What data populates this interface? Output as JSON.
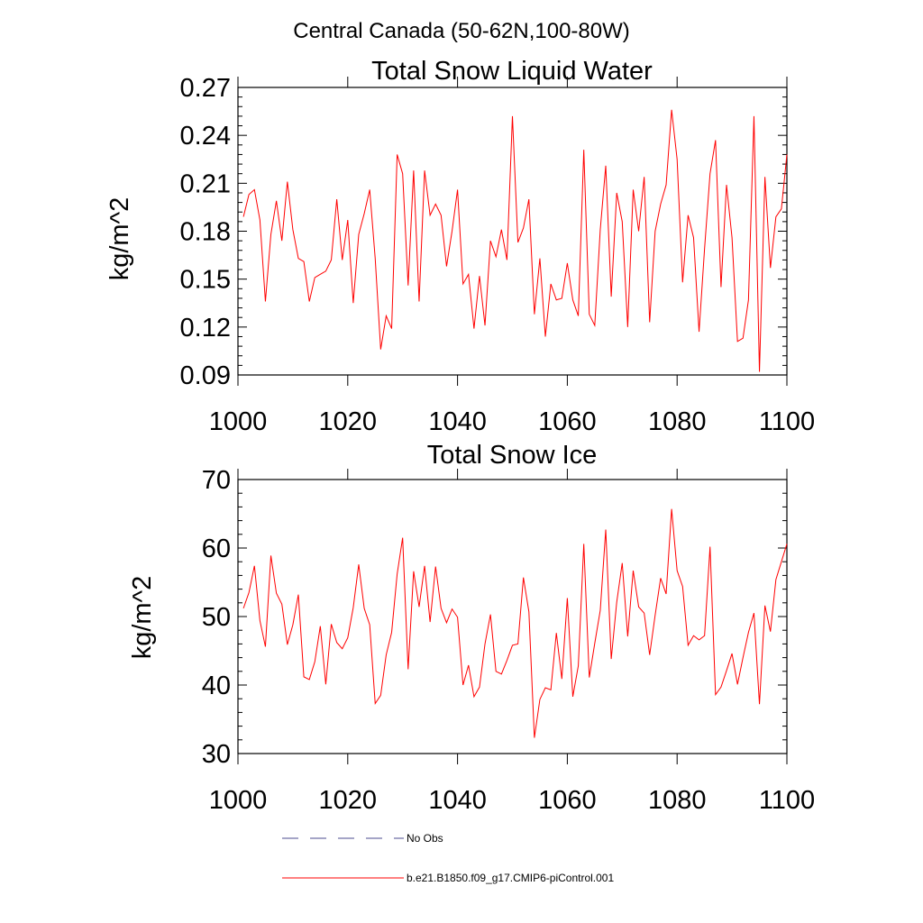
{
  "figure_title": "Central Canada (50-62N,100-80W)",
  "legend": {
    "items": [
      {
        "label": "No Obs",
        "style": "dashed",
        "color": "#4b4b8f"
      },
      {
        "label": "b.e21.B1850.f09_g17.CMIP6-piControl.001",
        "style": "solid",
        "color": "#ff0000"
      }
    ]
  },
  "chart_data": [
    {
      "type": "line",
      "title": "Total Snow Liquid Water",
      "xlabel": "",
      "ylabel": "kg/m^2",
      "xlim": [
        1000,
        1100
      ],
      "ylim": [
        0.09,
        0.27
      ],
      "xticks": [
        1000,
        1020,
        1040,
        1060,
        1080,
        1100
      ],
      "xtick_labels": [
        "1000",
        "1020",
        "1040",
        "1060",
        "1080",
        "1100"
      ],
      "yticks": [
        0.09,
        0.12,
        0.15,
        0.18,
        0.21,
        0.24,
        0.27
      ],
      "ytick_labels": [
        "0.09",
        "0.12",
        "0.15",
        "0.18",
        "0.21",
        "0.24",
        "0.27"
      ],
      "x_start": 1001,
      "x_step": 1,
      "series": [
        {
          "name": "b.e21.B1850.f09_g17.CMIP6-piControl.001",
          "color": "#ff0000",
          "values": [
            0.189,
            0.203,
            0.206,
            0.187,
            0.136,
            0.178,
            0.199,
            0.174,
            0.211,
            0.181,
            0.163,
            0.161,
            0.136,
            0.151,
            0.153,
            0.155,
            0.162,
            0.2,
            0.162,
            0.187,
            0.135,
            0.178,
            0.191,
            0.206,
            0.163,
            0.106,
            0.127,
            0.119,
            0.228,
            0.216,
            0.146,
            0.218,
            0.136,
            0.218,
            0.19,
            0.197,
            0.19,
            0.158,
            0.18,
            0.206,
            0.147,
            0.153,
            0.119,
            0.152,
            0.121,
            0.174,
            0.164,
            0.181,
            0.162,
            0.252,
            0.173,
            0.182,
            0.2,
            0.128,
            0.163,
            0.114,
            0.147,
            0.137,
            0.138,
            0.16,
            0.137,
            0.127,
            0.231,
            0.128,
            0.121,
            0.181,
            0.221,
            0.139,
            0.204,
            0.186,
            0.12,
            0.206,
            0.18,
            0.214,
            0.123,
            0.18,
            0.197,
            0.209,
            0.256,
            0.225,
            0.148,
            0.19,
            0.176,
            0.117,
            0.169,
            0.216,
            0.237,
            0.145,
            0.209,
            0.176,
            0.111,
            0.113,
            0.137,
            0.252,
            0.092,
            0.214,
            0.157,
            0.189,
            0.194,
            0.228
          ]
        }
      ]
    },
    {
      "type": "line",
      "title": "Total Snow Ice",
      "xlabel": "",
      "ylabel": "kg/m^2",
      "xlim": [
        1000,
        1100
      ],
      "ylim": [
        30,
        70
      ],
      "xticks": [
        1000,
        1020,
        1040,
        1060,
        1080,
        1100
      ],
      "xtick_labels": [
        "1000",
        "1020",
        "1040",
        "1060",
        "1080",
        "1100"
      ],
      "yticks": [
        30,
        40,
        50,
        60,
        70
      ],
      "ytick_labels": [
        "30",
        "40",
        "50",
        "60",
        "70"
      ],
      "x_start": 1001,
      "x_step": 1,
      "series": [
        {
          "name": "b.e21.B1850.f09_g17.CMIP6-piControl.001",
          "color": "#ff0000",
          "values": [
            51.2,
            53.5,
            57.4,
            49.4,
            45.6,
            58.9,
            53.4,
            51.8,
            45.9,
            48.8,
            53.2,
            41.2,
            40.8,
            43.4,
            48.6,
            40.1,
            48.9,
            46.2,
            45.3,
            46.9,
            51.3,
            57.6,
            51.2,
            48.8,
            37.3,
            38.5,
            44.4,
            47.7,
            56.2,
            61.5,
            42.3,
            56.6,
            51.4,
            57.4,
            49.2,
            57.3,
            51.2,
            49.1,
            51.1,
            49.9,
            40.0,
            42.9,
            38.3,
            39.7,
            46.0,
            50.3,
            42.0,
            41.6,
            43.6,
            45.8,
            46.0,
            55.7,
            50.7,
            32.3,
            37.9,
            39.6,
            39.3,
            47.6,
            40.9,
            52.7,
            38.3,
            42.8,
            60.6,
            41.1,
            46.1,
            50.9,
            62.7,
            43.8,
            52.1,
            57.8,
            47.1,
            56.7,
            51.4,
            50.5,
            44.4,
            50.2,
            55.6,
            53.3,
            65.7,
            56.7,
            54.4,
            45.8,
            47.2,
            46.6,
            47.2,
            60.2,
            38.6,
            39.7,
            42.1,
            44.6,
            40.1,
            44.0,
            47.7,
            50.5,
            37.2,
            51.6,
            47.8,
            55.4,
            58.0,
            60.6
          ]
        }
      ]
    }
  ]
}
